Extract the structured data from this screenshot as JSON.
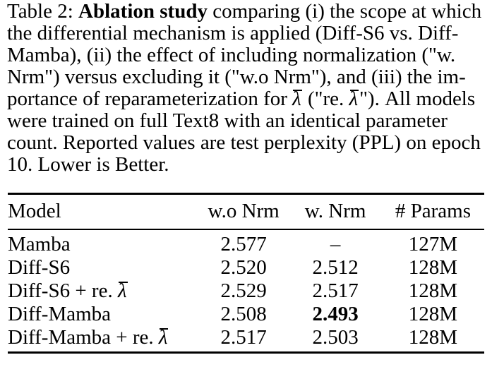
{
  "caption": {
    "line1": {
      "pre": "Table 2: ",
      "bold": "Ablation study",
      "post": " comparing (i) the scope at which"
    },
    "line2": "the differential mechanism is applied (Diff-S6 vs. Diff-",
    "line3": "Mamba), (ii) the effect of including normalization (\"w.",
    "line4": "Nrm\") versus excluding it (\"w.o Nrm\"), and (iii) the im-",
    "line5": {
      "seg1": "portance of reparameterization for ",
      "lambda1": "λ",
      "seg2": " (\"re. ",
      "lambda2": "λ",
      "seg3": "\"). All models"
    },
    "line6": "were trained on full Text8 with an identical parameter",
    "line7": "count. Reported values are test perplexity (PPL) on epoch",
    "line8": "10. Lower is Better."
  },
  "table": {
    "headers": [
      "Model",
      "w.o Nrm",
      "w. Nrm",
      "# Params"
    ],
    "rows": [
      {
        "model": "Mamba",
        "wo_nrm": "2.577",
        "w_nrm": "–",
        "params": "127M"
      },
      {
        "model": "Diff-S6",
        "wo_nrm": "2.520",
        "w_nrm": "2.512",
        "params": "128M"
      },
      {
        "model": "Diff-S6 + re. ",
        "model_lambda": "λ",
        "wo_nrm": "2.529",
        "w_nrm": "2.517",
        "params": "128M"
      },
      {
        "model": "Diff-Mamba",
        "wo_nrm": "2.508",
        "w_nrm": "2.493",
        "params": "128M"
      },
      {
        "model": "Diff-Mamba + re. ",
        "model_lambda": "λ",
        "wo_nrm": "2.517",
        "w_nrm": "2.503",
        "params": "128M"
      }
    ]
  },
  "colors": {
    "text": "#000000",
    "background": "#ffffff",
    "rule": "#000000"
  }
}
